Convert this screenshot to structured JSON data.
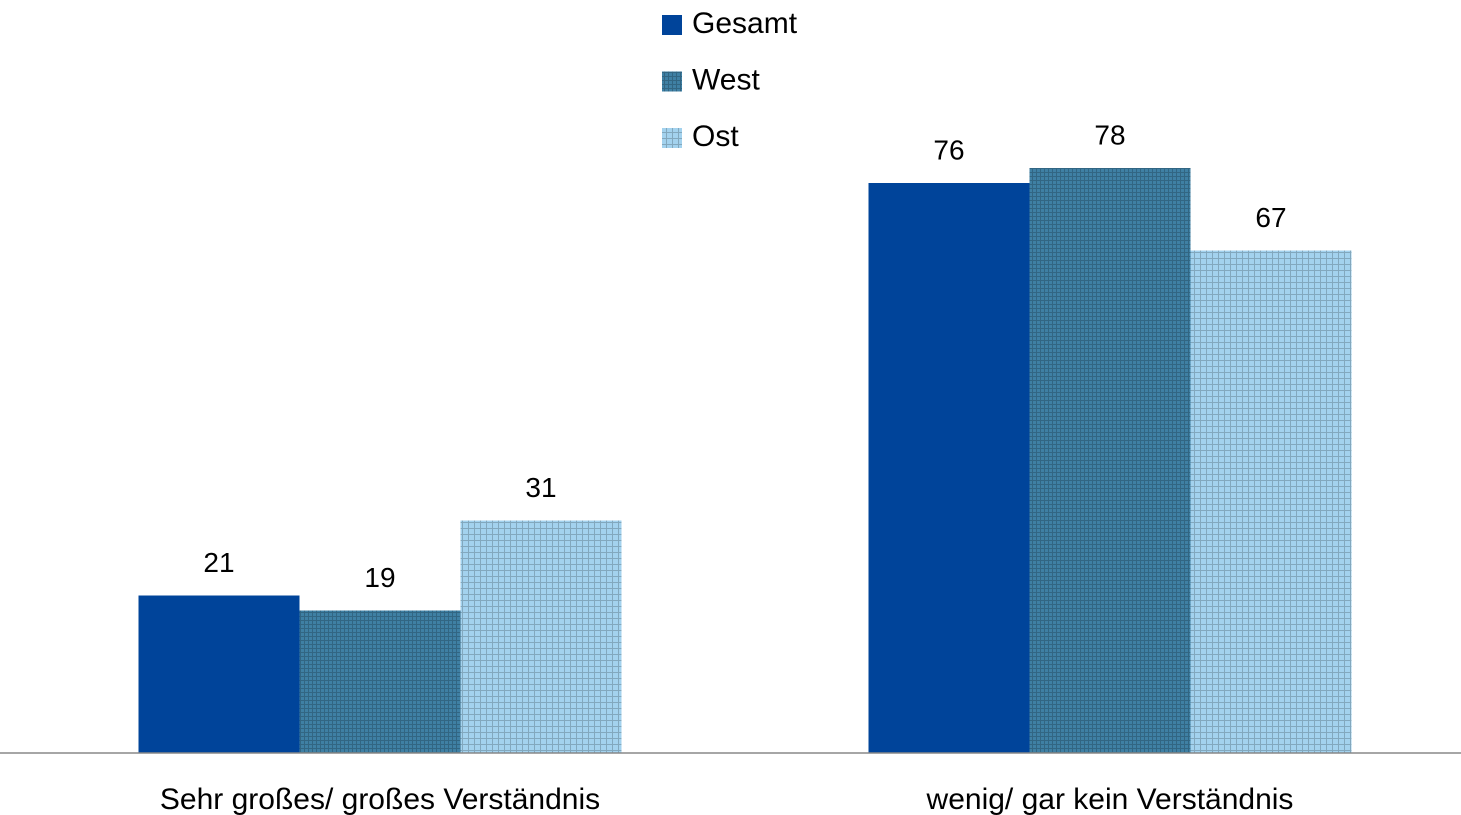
{
  "chart_data": {
    "type": "bar",
    "categories": [
      "Sehr großes/ großes Verständnis",
      "wenig/ gar kein Verständnis"
    ],
    "series": [
      {
        "name": "Gesamt",
        "color": "#00449a",
        "values": [
          21,
          76
        ]
      },
      {
        "name": "West",
        "color": "#3f80a4",
        "pattern": "grid",
        "values": [
          19,
          78
        ]
      },
      {
        "name": "Ost",
        "color": "#a3d2ee",
        "pattern": "grid",
        "values": [
          31,
          67
        ]
      }
    ],
    "ylim": [
      0,
      100
    ],
    "legend": "top"
  }
}
